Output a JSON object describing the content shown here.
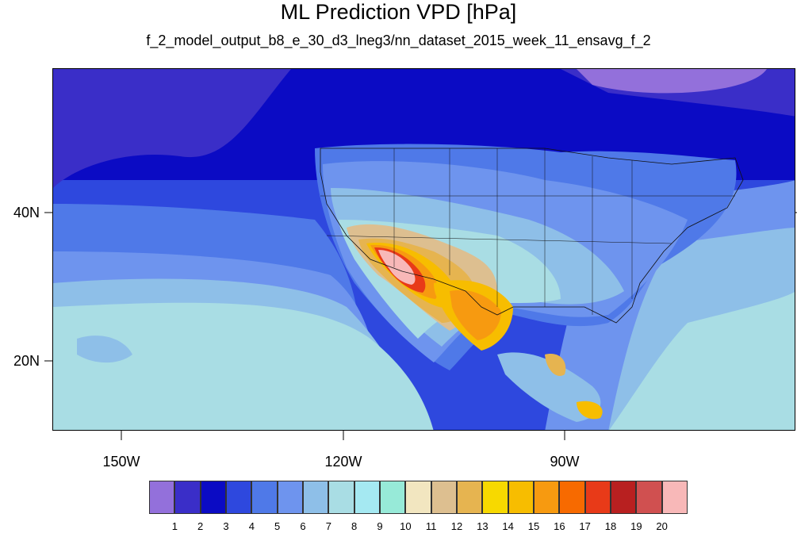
{
  "title": "ML Prediction VPD [hPa]",
  "subtitle": "f_2_model_output_b8_e_30_d3_lneg3/nn_dataset_2015_week_11_ensavg_f_2",
  "axes": {
    "x_labels": [
      "150W",
      "120W",
      "90W"
    ],
    "y_labels": [
      "40N",
      "20N"
    ]
  },
  "colorbar": {
    "labels": [
      "1",
      "2",
      "3",
      "4",
      "5",
      "6",
      "7",
      "8",
      "9",
      "10",
      "11",
      "12",
      "13",
      "14",
      "15",
      "16",
      "17",
      "18",
      "19",
      "20"
    ],
    "colors": [
      "#9370db",
      "#3a2ec8",
      "#0b0bc4",
      "#2e48de",
      "#4f79e8",
      "#6e94ee",
      "#8ebfe8",
      "#a9dde4",
      "#a5e9f2",
      "#97ead8",
      "#f2e6c0",
      "#ddbf90",
      "#e6b450",
      "#f7d900",
      "#f7bd00",
      "#f79a10",
      "#f76a00",
      "#e83a18",
      "#b82020",
      "#d05050",
      "#f8b8b8"
    ]
  }
}
